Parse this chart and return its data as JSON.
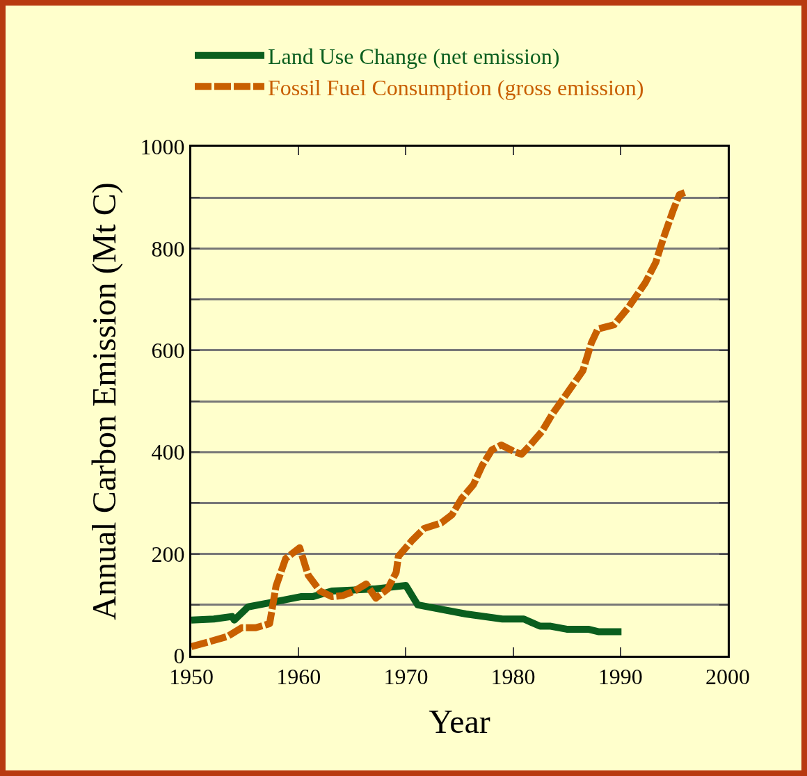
{
  "chart_data": {
    "type": "line",
    "xlabel": "Year",
    "ylabel": "Annual Carbon Emission (Mt C)",
    "xlim": [
      1950,
      2000
    ],
    "xticks": [
      1950,
      1960,
      1970,
      1980,
      1990,
      2000
    ],
    "ylim": [
      0,
      1000
    ],
    "yticks": [
      0,
      {
        "value": 100,
        "label": null
      },
      200,
      {
        "value": 300,
        "label": null
      },
      400,
      {
        "value": 500,
        "label": null
      },
      600,
      {
        "value": 700,
        "label": null
      },
      800,
      {
        "value": 900,
        "label": null
      },
      1000
    ],
    "grid": "y",
    "legend": "top",
    "marker": "none",
    "series": [
      {
        "name": "Land Use Change (net emission)",
        "color": "#0a5e1e",
        "line_style": "solid",
        "x": [
          1950,
          1952.1,
          1953.8,
          1954.0,
          1955.3,
          1957.3,
          1960.2,
          1961.3,
          1963.1,
          1967.0,
          1970.0,
          1971.1,
          1975.6,
          1979.0,
          1981.0,
          1982.5,
          1983.5,
          1985.0,
          1987.0,
          1988.0,
          1990.1
        ],
        "values": [
          70,
          72,
          77,
          70,
          96,
          104,
          116,
          116,
          127,
          131,
          138,
          100,
          82,
          72,
          72,
          58,
          58,
          52,
          52,
          47,
          47
        ]
      },
      {
        "name": "Fossil Fuel Consumption (gross emission)",
        "color": "#c85f00",
        "line_style": "dashed",
        "x": [
          1950,
          1951.6,
          1953.4,
          1954.7,
          1956.0,
          1957.3,
          1957.9,
          1958.8,
          1960.1,
          1960.9,
          1962.0,
          1963.1,
          1964.1,
          1965.2,
          1966.3,
          1967.2,
          1968.3,
          1969.1,
          1969.3,
          1970.6,
          1971.7,
          1973.3,
          1974.3,
          1975.2,
          1976.3,
          1977.1,
          1978.0,
          1978.9,
          1980.2,
          1980.8,
          1981.6,
          1982.7,
          1983.6,
          1984.5,
          1985.5,
          1986.5,
          1987.3,
          1987.9,
          1989.4,
          1990.7,
          1992.3,
          1993.3,
          1994.0,
          1994.9,
          1995.5,
          1996.0
        ],
        "values": [
          18,
          27,
          38,
          55,
          55,
          63,
          137,
          191,
          212,
          158,
          127,
          116,
          118,
          127,
          141,
          113,
          131,
          164,
          195,
          227,
          250,
          261,
          277,
          309,
          336,
          373,
          404,
          414,
          400,
          396,
          414,
          441,
          473,
          500,
          530,
          560,
          615,
          642,
          650,
          683,
          732,
          773,
          820,
          874,
          906,
          910
        ]
      }
    ]
  }
}
